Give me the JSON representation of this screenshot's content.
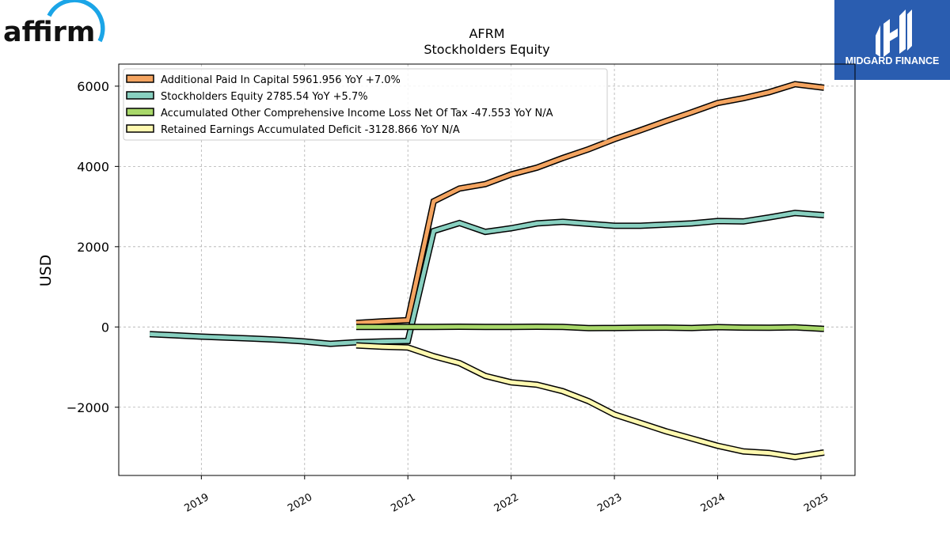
{
  "brand": {
    "left_logo_text": "affirm",
    "right_logo_text": "MIDGARD FINANCE",
    "right_logo_color": "#2a5db0",
    "affirm_accent_color": "#1ba5e7"
  },
  "chart_data": {
    "type": "line",
    "title": "AFRM",
    "subtitle": "Stockholders  Equity",
    "xlabel": "",
    "ylabel": "USD",
    "xlim": [
      2018.2,
      2025.33
    ],
    "ylim": [
      -3700,
      6550
    ],
    "y_ticks": [
      6000,
      4000,
      2000,
      0,
      -2000
    ],
    "y_tick_labels": [
      "6000",
      "4000",
      "2000",
      "0",
      "−2000"
    ],
    "x_ticks": [
      2019,
      2020,
      2021,
      2022,
      2023,
      2024,
      2025
    ],
    "x_tick_labels": [
      "2019",
      "2020",
      "2021",
      "2022",
      "2023",
      "2024",
      "2025"
    ],
    "grid": true,
    "legend_position": "top-left",
    "series": [
      {
        "name": "Additional Paid In Capital",
        "legend": "Additional Paid In Capital  5961.956 YoY +7.0%",
        "color": "#f4a460",
        "x": [
          2020.5,
          2020.75,
          2021.0,
          2021.25,
          2021.5,
          2021.75,
          2022.0,
          2022.25,
          2022.5,
          2022.75,
          2023.0,
          2023.25,
          2023.5,
          2023.75,
          2024.0,
          2024.25,
          2024.5,
          2024.75,
          2025.03
        ],
        "y": [
          100,
          140,
          170,
          3130,
          3450,
          3560,
          3800,
          3970,
          4210,
          4430,
          4680,
          4900,
          5130,
          5350,
          5580,
          5700,
          5850,
          6050,
          5960
        ]
      },
      {
        "name": "Stockholders Equity",
        "legend": "Stockholders Equity  2785.54 YoY +5.7%",
        "color": "#88d0c0",
        "x": [
          2018.5,
          2018.75,
          2019.0,
          2019.25,
          2019.5,
          2019.75,
          2020.0,
          2020.25,
          2020.5,
          2020.75,
          2021.0,
          2021.25,
          2021.5,
          2021.75,
          2022.0,
          2022.25,
          2022.5,
          2022.75,
          2023.0,
          2023.25,
          2023.5,
          2023.75,
          2024.0,
          2024.25,
          2024.5,
          2024.75,
          2025.03
        ],
        "y": [
          -180,
          -210,
          -240,
          -265,
          -290,
          -320,
          -360,
          -420,
          -380,
          -360,
          -350,
          2390,
          2590,
          2370,
          2460,
          2580,
          2620,
          2570,
          2520,
          2520,
          2550,
          2580,
          2640,
          2630,
          2730,
          2840,
          2786
        ]
      },
      {
        "name": "Accumulated Other Comprehensive Income Loss Net Of Tax",
        "legend": "Accumulated Other Comprehensive Income Loss Net Of Tax  -47.553 YoY N/A",
        "color": "#a8d86a",
        "x": [
          2020.5,
          2020.75,
          2021.0,
          2021.25,
          2021.5,
          2021.75,
          2022.0,
          2022.25,
          2022.5,
          2022.75,
          2023.0,
          2023.25,
          2023.5,
          2023.75,
          2024.0,
          2024.25,
          2024.5,
          2024.75,
          2025.03
        ],
        "y": [
          0,
          0,
          0,
          0,
          5,
          0,
          0,
          5,
          0,
          -30,
          -25,
          -20,
          -15,
          -25,
          -5,
          -15,
          -20,
          -10,
          -48
        ]
      },
      {
        "name": "Retained Earnings Accumulated Deficit",
        "legend": "Retained Earnings Accumulated Deficit  -3128.866 YoY N/A",
        "color": "#fff9b0",
        "x": [
          2020.5,
          2020.75,
          2021.0,
          2021.25,
          2021.5,
          2021.75,
          2022.0,
          2022.25,
          2022.5,
          2022.75,
          2023.0,
          2023.25,
          2023.5,
          2023.75,
          2024.0,
          2024.25,
          2024.5,
          2024.75,
          2025.03
        ],
        "y": [
          -460,
          -490,
          -510,
          -730,
          -900,
          -1220,
          -1380,
          -1440,
          -1600,
          -1850,
          -2180,
          -2390,
          -2600,
          -2780,
          -2960,
          -3100,
          -3140,
          -3240,
          -3129
        ]
      }
    ]
  }
}
